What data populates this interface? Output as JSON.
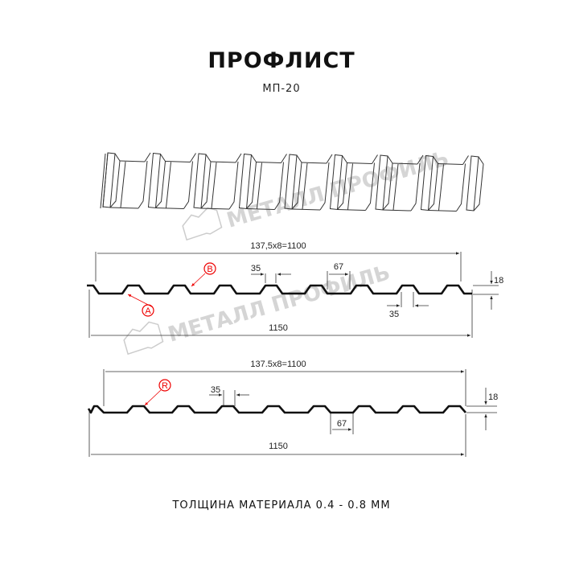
{
  "header": {
    "title": "ПРОФЛИСТ",
    "model": "МП-20"
  },
  "watermark": {
    "text": "МЕТАЛЛ ПРОФИЛЬ"
  },
  "drawing1": {
    "pitch_label": "137,5x8=1100",
    "width_label": "1150",
    "crest_label": "35",
    "crest_bottom_label": "35",
    "rib_label": "67",
    "height_label": "18",
    "marker_a": "A",
    "marker_b": "B"
  },
  "drawing2": {
    "pitch_label": "137.5x8=1100",
    "width_label": "1150",
    "crest_label": "35",
    "rib_label": "67",
    "height_label": "18",
    "marker_r": "R"
  },
  "footer": {
    "thickness": "ТОЛЩИНА МАТЕРИАЛА 0.4 - 0.8 ММ"
  },
  "colors": {
    "line": "#111111",
    "marker": "#e00000",
    "watermark": "#c8c8c8"
  }
}
